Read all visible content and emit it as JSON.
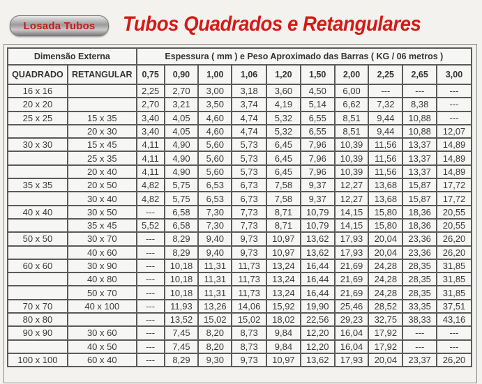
{
  "logo": {
    "text": "Losada Tubos"
  },
  "title": "Tubos Quadrados e Retangulares",
  "header": {
    "dimensao": "Dimensão Externa",
    "espessura": "Espessura ( mm ) e Peso Aproximado das Barras ( KG / 06 metros )",
    "quadrado": "QUADRADO",
    "retangular": "RETANGULAR",
    "thicknesses": [
      "0,75",
      "0,90",
      "1,00",
      "1,06",
      "1,20",
      "1,50",
      "2,00",
      "2,25",
      "2,65",
      "3,00"
    ]
  },
  "rows": [
    {
      "q": "16 x 16",
      "r": "",
      "v": [
        "2,25",
        "2,70",
        "3,00",
        "3,18",
        "3,60",
        "4,50",
        "6,00",
        "---",
        "---",
        "---"
      ]
    },
    {
      "q": "20 x 20",
      "r": "",
      "v": [
        "2,70",
        "3,21",
        "3,50",
        "3,74",
        "4,19",
        "5,14",
        "6,62",
        "7,32",
        "8,38",
        "---"
      ]
    },
    {
      "q": "25 x 25",
      "r": "15 x 35",
      "v": [
        "3,40",
        "4,05",
        "4,60",
        "4,74",
        "5,32",
        "6,55",
        "8,51",
        "9,44",
        "10,88",
        "---"
      ]
    },
    {
      "q": "",
      "r": "20 x 30",
      "v": [
        "3,40",
        "4,05",
        "4,60",
        "4,74",
        "5,32",
        "6,55",
        "8,51",
        "9,44",
        "10,88",
        "12,07"
      ]
    },
    {
      "q": "30 x 30",
      "r": "15 x 45",
      "v": [
        "4,11",
        "4,90",
        "5,60",
        "5,73",
        "6,45",
        "7,96",
        "10,39",
        "11,56",
        "13,37",
        "14,89"
      ]
    },
    {
      "q": "",
      "r": "25 x 35",
      "v": [
        "4,11",
        "4,90",
        "5,60",
        "5,73",
        "6,45",
        "7,96",
        "10,39",
        "11,56",
        "13,37",
        "14,89"
      ]
    },
    {
      "q": "",
      "r": "20 x 40",
      "v": [
        "4,11",
        "4,90",
        "5,60",
        "5,73",
        "6,45",
        "7,96",
        "10,39",
        "11,56",
        "13,37",
        "14,89"
      ]
    },
    {
      "q": "35 x 35",
      "r": "20 x 50",
      "v": [
        "4,82",
        "5,75",
        "6,53",
        "6,73",
        "7,58",
        "9,37",
        "12,27",
        "13,68",
        "15,87",
        "17,72"
      ]
    },
    {
      "q": "",
      "r": "30 x 40",
      "v": [
        "4,82",
        "5,75",
        "6,53",
        "6,73",
        "7,58",
        "9,37",
        "12,27",
        "13,68",
        "15,87",
        "17,72"
      ]
    },
    {
      "q": "40 x 40",
      "r": "30 x 50",
      "v": [
        "---",
        "6,58",
        "7,30",
        "7,73",
        "8,71",
        "10,79",
        "14,15",
        "15,80",
        "18,36",
        "20,55"
      ]
    },
    {
      "q": "",
      "r": "35 x 45",
      "v": [
        "5,52",
        "6,58",
        "7,30",
        "7,73",
        "8,71",
        "10,79",
        "14,15",
        "15,80",
        "18,36",
        "20,55"
      ]
    },
    {
      "q": "50 x 50",
      "r": "30 x 70",
      "v": [
        "---",
        "8,29",
        "9,40",
        "9,73",
        "10,97",
        "13,62",
        "17,93",
        "20,04",
        "23,36",
        "26,20"
      ]
    },
    {
      "q": "",
      "r": "40 x 60",
      "v": [
        "---",
        "8,29",
        "9,40",
        "9,73",
        "10,97",
        "13,62",
        "17,93",
        "20,04",
        "23,36",
        "26,20"
      ]
    },
    {
      "q": "60 x 60",
      "r": "30 x 90",
      "v": [
        "---",
        "10,18",
        "11,31",
        "11,73",
        "13,24",
        "16,44",
        "21,69",
        "24,28",
        "28,35",
        "31,85"
      ]
    },
    {
      "q": "",
      "r": "40 x 80",
      "v": [
        "---",
        "10,18",
        "11,31",
        "11,73",
        "13,24",
        "16,44",
        "21,69",
        "24,28",
        "28,35",
        "31,85"
      ]
    },
    {
      "q": "",
      "r": "50 x 70",
      "v": [
        "---",
        "10,18",
        "11,31",
        "11,73",
        "13,24",
        "16,44",
        "21,69",
        "24,28",
        "28,35",
        "31,85"
      ]
    },
    {
      "q": "70 x 70",
      "r": "40 x 100",
      "v": [
        "---",
        "11,93",
        "13,26",
        "14,06",
        "15,92",
        "19,90",
        "25,46",
        "28,52",
        "33,35",
        "37,51"
      ]
    },
    {
      "q": "80 x 80",
      "r": "",
      "v": [
        "---",
        "13,52",
        "15,02",
        "15,02",
        "18,02",
        "22,56",
        "29,23",
        "32,75",
        "38,33",
        "43,16"
      ]
    },
    {
      "q": "90 x 90",
      "r": "30 x 60",
      "v": [
        "---",
        "7,45",
        "8,20",
        "8,73",
        "9,84",
        "12,20",
        "16,04",
        "17,92",
        "---",
        "---"
      ]
    },
    {
      "q": "",
      "r": "40 x 50",
      "v": [
        "---",
        "7,45",
        "8,20",
        "8,73",
        "9,84",
        "12,20",
        "16,04",
        "17,92",
        "---",
        "---"
      ]
    },
    {
      "q": "100 x 100",
      "r": "60 x 40",
      "v": [
        "---",
        "8,29",
        "9,30",
        "9,73",
        "10,97",
        "13,62",
        "17,93",
        "20,04",
        "23,37",
        "26,20"
      ]
    }
  ]
}
